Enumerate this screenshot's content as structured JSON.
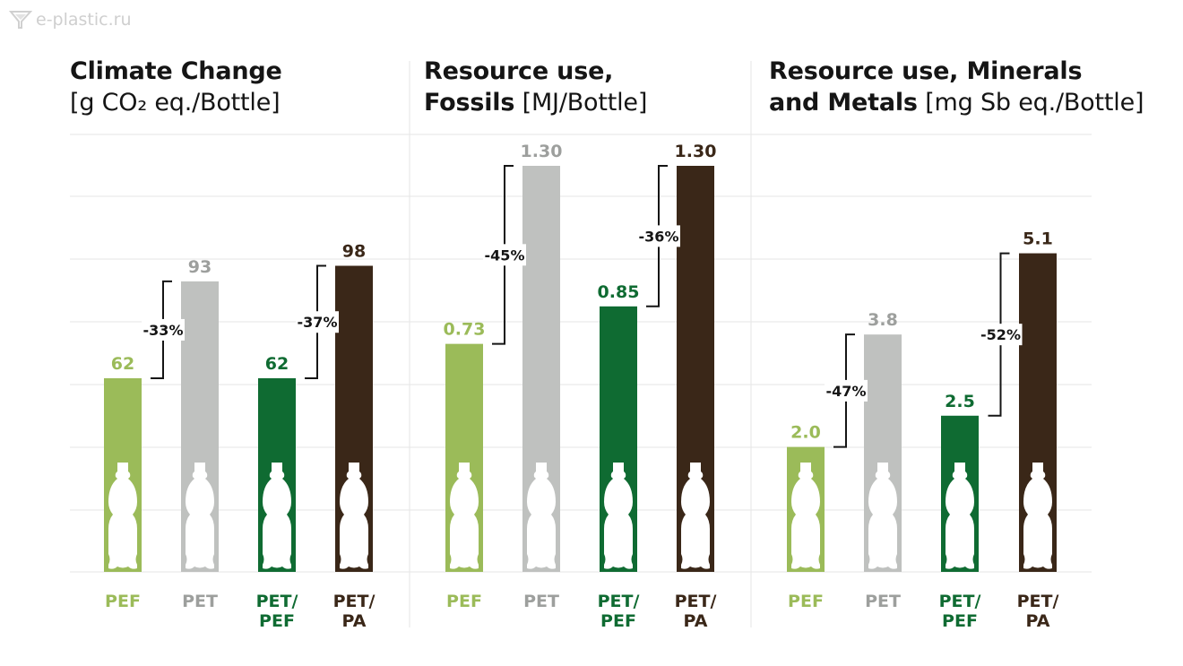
{
  "watermark": "e-plastic.ru",
  "colors": {
    "PEF": "#9bbb59",
    "PET": "#bfc1bf",
    "PET/PEF": "#0f6b32",
    "PET/PA": "#3a2718",
    "grid": "#e6e6e6",
    "text": "#151515"
  },
  "chart_data": [
    {
      "type": "bar",
      "title": "Climate Change",
      "title_line1": "Climate Change",
      "unit_line": "[g CO₂ eq./Bottle]",
      "categories": [
        "PEF",
        "PET",
        "PET/ PEF",
        "PET/ PA"
      ],
      "values": [
        62,
        93,
        62,
        98
      ],
      "labels": [
        "62",
        "93",
        "62",
        "98"
      ],
      "ylim": [
        0,
        130
      ],
      "comparisons": [
        {
          "from": 0,
          "to": 1,
          "label": "-33%"
        },
        {
          "from": 2,
          "to": 3,
          "label": "-37%"
        }
      ]
    },
    {
      "type": "bar",
      "title": "Resource use, Fossils",
      "title_line1": "Resource use,",
      "title_line2_bold": "Fossils",
      "title_line2_unit": "[MJ/Bottle]",
      "categories": [
        "PEF",
        "PET",
        "PET/ PEF",
        "PET/ PA"
      ],
      "values": [
        0.73,
        1.3,
        0.85,
        1.3
      ],
      "labels": [
        "0.73",
        "1.30",
        "0.85",
        "1.30"
      ],
      "ylim": [
        0,
        1.3
      ],
      "comparisons": [
        {
          "from": 0,
          "to": 1,
          "label": "-45%"
        },
        {
          "from": 2,
          "to": 3,
          "label": "-36%"
        }
      ]
    },
    {
      "type": "bar",
      "title": "Resource use, Minerals and Metals",
      "title_line1": "Resource use, Minerals",
      "title_line2_bold": "and Metals",
      "title_line2_unit": "[mg Sb eq./Bottle]",
      "categories": [
        "PEF",
        "PET",
        "PET/ PEF",
        "PET/ PA"
      ],
      "values": [
        2.0,
        3.8,
        2.5,
        5.1
      ],
      "labels": [
        "2.0",
        "3.8",
        "2.5",
        "5.1"
      ],
      "ylim": [
        0,
        6.5
      ],
      "comparisons": [
        {
          "from": 0,
          "to": 1,
          "label": "-47%"
        },
        {
          "from": 2,
          "to": 3,
          "label": "-52%"
        }
      ]
    }
  ]
}
